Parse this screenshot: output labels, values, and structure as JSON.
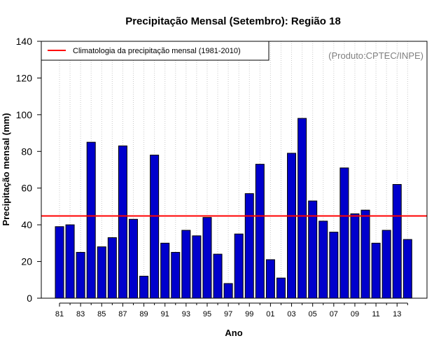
{
  "chart_data": {
    "type": "bar",
    "title": "Precipitação Mensal (Setembro): Região 18",
    "xlabel": "Ano",
    "ylabel": "Precipitação mensal (mm)",
    "ylim": [
      0,
      140
    ],
    "yticks": [
      0,
      20,
      40,
      60,
      80,
      100,
      120,
      140
    ],
    "categories": [
      "81",
      "82",
      "83",
      "84",
      "85",
      "86",
      "87",
      "88",
      "89",
      "90",
      "91",
      "92",
      "93",
      "94",
      "95",
      "96",
      "97",
      "98",
      "99",
      "00",
      "01",
      "02",
      "03",
      "04",
      "05",
      "06",
      "07",
      "08",
      "09",
      "10",
      "11",
      "12",
      "13",
      "14"
    ],
    "xtick_labels": [
      "81",
      "83",
      "85",
      "87",
      "89",
      "91",
      "93",
      "95",
      "97",
      "99",
      "01",
      "03",
      "05",
      "07",
      "09",
      "11",
      "13"
    ],
    "values": [
      39,
      40,
      25,
      85,
      28,
      33,
      83,
      43,
      12,
      78,
      30,
      25,
      37,
      34,
      44,
      24,
      8,
      35,
      57,
      73,
      21,
      11,
      79,
      98,
      53,
      42,
      36,
      71,
      46,
      48,
      30,
      37,
      62,
      32
    ],
    "bar_color": "#0000CC",
    "climatology": {
      "label": "Climatologia da precipitação mensal (1981-2010)",
      "value": 44.8,
      "color": "#FF0000"
    },
    "source_note": "(Produto:CPTEC/INPE)",
    "grid": "vertical dotted"
  }
}
